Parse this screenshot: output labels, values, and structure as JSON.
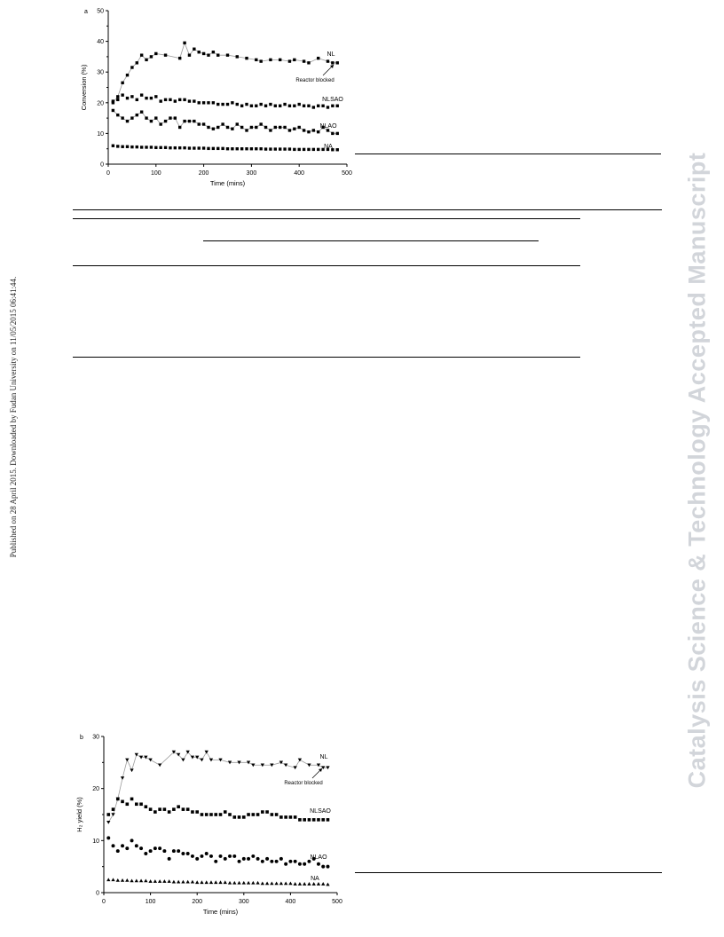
{
  "sidebar_text": "Published on 28 April 2015. Downloaded by Fudan University on 11/05/2015 06:41:44.",
  "watermark_text": "Catalysis Science & Technology Accepted Manuscript",
  "chart_data": [
    {
      "type": "scatter",
      "panel_label": "a",
      "xlabel": "Time (mins)",
      "ylabel": "Conversion (%)",
      "xlim": [
        0,
        500
      ],
      "ylim": [
        0,
        50
      ],
      "xticks": [
        0,
        100,
        200,
        300,
        400,
        500
      ],
      "yticks": [
        0,
        10,
        20,
        30,
        40,
        50
      ],
      "annotation": "Reactor blocked",
      "series": [
        {
          "name": "NL",
          "marker": "square",
          "connected": true,
          "x": [
            10,
            20,
            30,
            40,
            50,
            60,
            70,
            80,
            90,
            100,
            120,
            150,
            160,
            170,
            180,
            190,
            200,
            210,
            220,
            230,
            250,
            270,
            290,
            310,
            320,
            340,
            360,
            380,
            390,
            410,
            420,
            440,
            460,
            470,
            480
          ],
          "y": [
            20,
            22,
            26.5,
            29,
            31.5,
            33,
            35.5,
            34,
            35,
            36,
            35.5,
            34.5,
            39.5,
            35.5,
            37.5,
            36.5,
            36,
            35.5,
            36.5,
            35.5,
            35.5,
            35,
            34.5,
            34,
            33.5,
            34,
            34,
            33.5,
            34,
            33.5,
            33,
            34.5,
            33.5,
            33,
            33
          ]
        },
        {
          "name": "NLSAO",
          "marker": "square",
          "connected": false,
          "x": [
            10,
            20,
            30,
            40,
            50,
            60,
            70,
            80,
            90,
            100,
            110,
            120,
            130,
            140,
            150,
            160,
            170,
            180,
            190,
            200,
            210,
            220,
            230,
            240,
            250,
            260,
            270,
            280,
            290,
            300,
            310,
            320,
            330,
            340,
            350,
            360,
            370,
            380,
            390,
            400,
            410,
            420,
            430,
            440,
            450,
            460,
            470,
            480
          ],
          "y": [
            20.5,
            21,
            22.5,
            21.5,
            22,
            21,
            22.5,
            21.5,
            21.5,
            22,
            20.5,
            21,
            21,
            20.5,
            21,
            21,
            20.5,
            20.5,
            20,
            20,
            20,
            20,
            19.5,
            19.5,
            19.5,
            20,
            19.5,
            19,
            19.5,
            19,
            19,
            19.5,
            19,
            19.5,
            19,
            19,
            19.5,
            19,
            19,
            19.5,
            19,
            19,
            18.5,
            19,
            19,
            18.5,
            19,
            19
          ]
        },
        {
          "name": "NLAO",
          "marker": "square",
          "connected": true,
          "x": [
            10,
            20,
            30,
            40,
            50,
            60,
            70,
            80,
            90,
            100,
            110,
            120,
            130,
            140,
            150,
            160,
            170,
            180,
            190,
            200,
            210,
            220,
            230,
            240,
            250,
            260,
            270,
            280,
            290,
            300,
            310,
            320,
            330,
            340,
            350,
            360,
            370,
            380,
            390,
            400,
            410,
            420,
            430,
            440,
            450,
            460,
            470,
            480
          ],
          "y": [
            17.5,
            16,
            15,
            14,
            15,
            16,
            17,
            15,
            14,
            15,
            13,
            14,
            15,
            15,
            12,
            14,
            14,
            14,
            13,
            13,
            12,
            11.5,
            12,
            13,
            12,
            11.5,
            13,
            12,
            11,
            12,
            12,
            13,
            12,
            11,
            12,
            12,
            12,
            11,
            11.5,
            12,
            11,
            10.5,
            11,
            10.5,
            12,
            11,
            10,
            10
          ]
        },
        {
          "name": "NA",
          "marker": "square",
          "connected": false,
          "x": [
            10,
            20,
            30,
            40,
            50,
            60,
            70,
            80,
            90,
            100,
            110,
            120,
            130,
            140,
            150,
            160,
            170,
            180,
            190,
            200,
            210,
            220,
            230,
            240,
            250,
            260,
            270,
            280,
            290,
            300,
            310,
            320,
            330,
            340,
            350,
            360,
            370,
            380,
            390,
            400,
            410,
            420,
            430,
            440,
            450,
            460,
            470,
            480
          ],
          "y": [
            6,
            5.8,
            5.7,
            5.7,
            5.6,
            5.6,
            5.5,
            5.5,
            5.5,
            5.4,
            5.4,
            5.4,
            5.3,
            5.3,
            5.3,
            5.3,
            5.2,
            5.2,
            5.2,
            5.2,
            5.1,
            5.1,
            5.1,
            5.1,
            5,
            5,
            5,
            5,
            5,
            5,
            5,
            5,
            4.9,
            4.9,
            4.9,
            4.9,
            4.9,
            4.9,
            4.8,
            4.8,
            4.8,
            4.8,
            4.8,
            4.8,
            4.8,
            4.8,
            4.7,
            4.7
          ]
        }
      ]
    },
    {
      "type": "scatter",
      "panel_label": "b",
      "xlabel": "Time (mins)",
      "ylabel": "H₂ yield (%)",
      "xlim": [
        0,
        500
      ],
      "ylim": [
        0,
        30
      ],
      "xticks": [
        0,
        100,
        200,
        300,
        400,
        500
      ],
      "yticks": [
        0,
        10,
        20,
        30
      ],
      "annotation": "Reactor blocked",
      "series": [
        {
          "name": "NL",
          "marker": "triangle-down",
          "connected": true,
          "x": [
            10,
            20,
            30,
            40,
            50,
            60,
            70,
            80,
            90,
            100,
            120,
            150,
            160,
            170,
            180,
            190,
            200,
            210,
            220,
            230,
            250,
            270,
            290,
            310,
            320,
            340,
            360,
            380,
            390,
            410,
            420,
            440,
            460,
            470,
            480
          ],
          "y": [
            13.5,
            15,
            18,
            22,
            25.5,
            23.5,
            26.5,
            26,
            26,
            25.5,
            24.5,
            27,
            26.5,
            25.5,
            27,
            26,
            26,
            25.5,
            27,
            25.5,
            25.5,
            25,
            25,
            25,
            24.5,
            24.5,
            24.5,
            25,
            24.5,
            24,
            25.5,
            24.5,
            24.5,
            24,
            24
          ]
        },
        {
          "name": "NLSAO",
          "marker": "square",
          "connected": false,
          "x": [
            10,
            20,
            30,
            40,
            50,
            60,
            70,
            80,
            90,
            100,
            110,
            120,
            130,
            140,
            150,
            160,
            170,
            180,
            190,
            200,
            210,
            220,
            230,
            240,
            250,
            260,
            270,
            280,
            290,
            300,
            310,
            320,
            330,
            340,
            350,
            360,
            370,
            380,
            390,
            400,
            410,
            420,
            430,
            440,
            450,
            460,
            470,
            480
          ],
          "y": [
            15,
            16,
            18,
            17.5,
            17,
            18,
            17,
            17,
            16.5,
            16,
            15.5,
            16,
            16,
            15.5,
            16,
            16.5,
            16,
            16,
            15.5,
            15.5,
            15,
            15,
            15,
            15,
            15,
            15.5,
            15,
            14.5,
            14.5,
            14.5,
            15,
            15,
            15,
            15.5,
            15.5,
            15,
            15,
            14.5,
            14.5,
            14.5,
            14.5,
            14,
            14,
            14,
            14,
            14,
            14,
            14
          ]
        },
        {
          "name": "NLAO",
          "marker": "circle",
          "connected": false,
          "x": [
            10,
            20,
            30,
            40,
            50,
            60,
            70,
            80,
            90,
            100,
            110,
            120,
            130,
            140,
            150,
            160,
            170,
            180,
            190,
            200,
            210,
            220,
            230,
            240,
            250,
            260,
            270,
            280,
            290,
            300,
            310,
            320,
            330,
            340,
            350,
            360,
            370,
            380,
            390,
            400,
            410,
            420,
            430,
            440,
            450,
            460,
            470,
            480
          ],
          "y": [
            10.5,
            9,
            8,
            9,
            8.5,
            10,
            9,
            8.5,
            7.5,
            8,
            8.5,
            8.5,
            8,
            6.5,
            8,
            8,
            7.5,
            7.5,
            7,
            6.5,
            7,
            7.5,
            7,
            6,
            7,
            6.5,
            7,
            7,
            6,
            6.5,
            6.5,
            7,
            6.5,
            6,
            6.5,
            6,
            6,
            6.5,
            5.5,
            6,
            6,
            5.5,
            5.5,
            6,
            6.5,
            5.5,
            5,
            5
          ]
        },
        {
          "name": "NA",
          "marker": "triangle-up",
          "connected": false,
          "x": [
            10,
            20,
            30,
            40,
            50,
            60,
            70,
            80,
            90,
            100,
            110,
            120,
            130,
            140,
            150,
            160,
            170,
            180,
            190,
            200,
            210,
            220,
            230,
            240,
            250,
            260,
            270,
            280,
            290,
            300,
            310,
            320,
            330,
            340,
            350,
            360,
            370,
            380,
            390,
            400,
            410,
            420,
            430,
            440,
            450,
            460,
            470,
            480
          ],
          "y": [
            2.5,
            2.5,
            2.4,
            2.4,
            2.4,
            2.3,
            2.3,
            2.3,
            2.3,
            2.2,
            2.2,
            2.2,
            2.2,
            2.2,
            2.1,
            2.1,
            2.1,
            2.1,
            2.1,
            2,
            2,
            2,
            2,
            2,
            2,
            2,
            1.9,
            1.9,
            1.9,
            1.9,
            1.9,
            1.9,
            1.9,
            1.8,
            1.8,
            1.8,
            1.8,
            1.8,
            1.8,
            1.8,
            1.7,
            1.7,
            1.7,
            1.7,
            1.7,
            1.7,
            1.7,
            1.6
          ]
        }
      ]
    }
  ]
}
